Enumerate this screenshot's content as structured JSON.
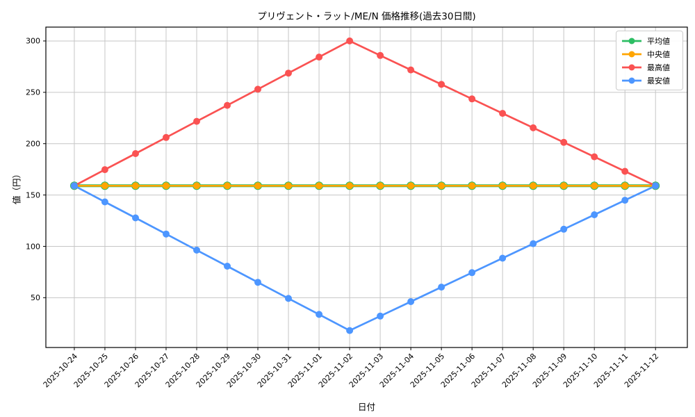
{
  "chart_data": {
    "type": "line",
    "title": "プリヴェント・ラット/ME/N 価格推移(過去30日間)",
    "xlabel": "日付",
    "ylabel": "値（円）",
    "grid": true,
    "legend_position": "upper right",
    "background_color": "#ffffff",
    "grid_color": "#c6c6c6",
    "axis_color": "#000000",
    "yticks": [
      50,
      100,
      150,
      200,
      250,
      300
    ],
    "ylim": [
      1.5,
      313.5
    ],
    "xlim_index": [
      -0.93,
      20.04
    ],
    "x": [
      "2025-10-24",
      "2025-10-25",
      "2025-10-26",
      "2025-10-27",
      "2025-10-28",
      "2025-10-29",
      "2025-10-30",
      "2025-10-31",
      "2025-11-01",
      "2025-11-02",
      "2025-11-03",
      "2025-11-04",
      "2025-11-05",
      "2025-11-06",
      "2025-11-07",
      "2025-11-08",
      "2025-11-09",
      "2025-11-10",
      "2025-11-11",
      "2025-11-12"
    ],
    "series": [
      {
        "key": "mean",
        "name": "平均値",
        "color": "#2DBE64",
        "values": [
          159,
          159,
          159,
          159,
          159,
          159,
          159,
          159,
          159,
          159,
          159,
          159,
          159,
          159,
          159,
          159,
          159,
          159,
          159,
          159
        ]
      },
      {
        "key": "median",
        "name": "中央値",
        "color": "#FFA502",
        "values": [
          159,
          159,
          159,
          159,
          159,
          159,
          159,
          159,
          159,
          159,
          159,
          159,
          159,
          159,
          159,
          159,
          159,
          159,
          159,
          159
        ]
      },
      {
        "key": "max",
        "name": "最高値",
        "color": "#FA5252",
        "values": [
          159,
          174.7,
          190.3,
          206,
          221.7,
          237.3,
          253,
          268.7,
          284.3,
          300,
          285.9,
          271.8,
          257.7,
          243.6,
          229.5,
          215.4,
          201.3,
          187.2,
          173.1,
          159
        ]
      },
      {
        "key": "min",
        "name": "最安値",
        "color": "#4D96FF",
        "values": [
          159,
          143.3,
          127.7,
          112,
          96.3,
          80.7,
          65,
          49.3,
          33.7,
          18,
          32.1,
          46.2,
          60.3,
          74.4,
          88.5,
          102.6,
          116.7,
          130.8,
          144.9,
          159
        ]
      }
    ]
  }
}
